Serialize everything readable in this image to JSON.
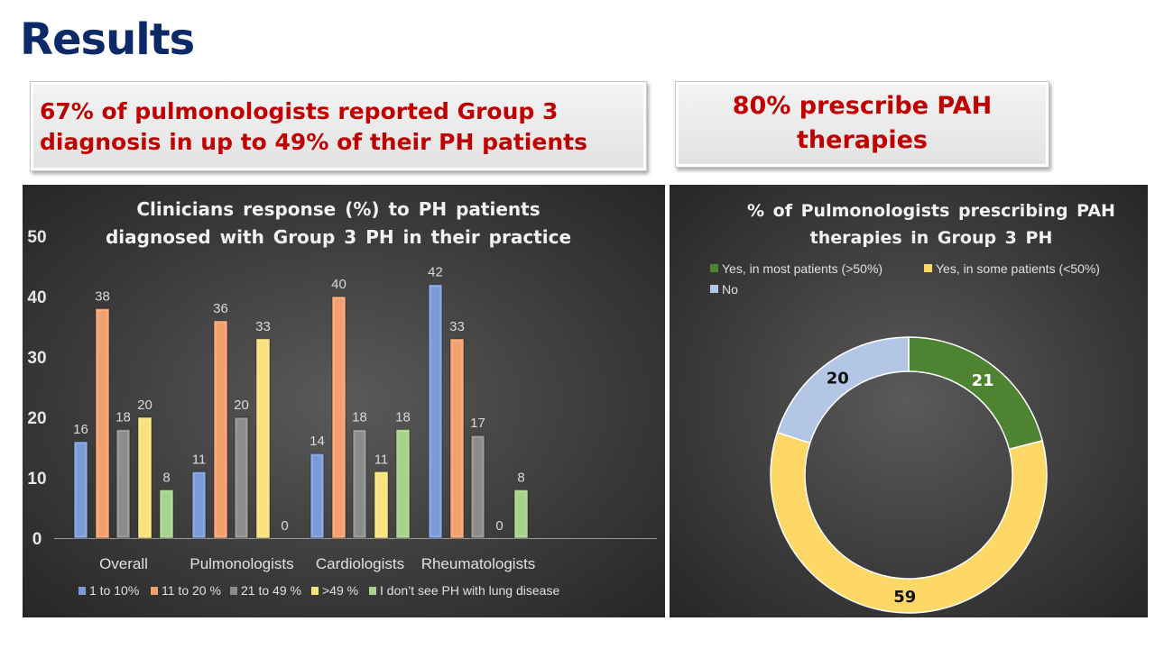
{
  "header": {
    "title": "Results"
  },
  "callouts": [
    {
      "line1": "67% of pulmonologists reported Group 3",
      "line2": "diagnosis in up to 49% of their PH patients"
    },
    {
      "line1": "80% prescribe PAH",
      "line2": "therapies"
    }
  ],
  "colors": {
    "title": "#0d2a68",
    "callout_text": "#c00000"
  },
  "chart_data": [
    {
      "type": "bar",
      "title_line1": "Clinicians  response  (%)  to  PH  patients",
      "title_line2": "diagnosed  with  Group  3  PH  in  their  practice",
      "categories": [
        "Overall",
        "Pulmonologists",
        "Cardiologists",
        "Rheumatologists"
      ],
      "ylim": [
        0,
        50
      ],
      "yticks": [
        "0",
        "10",
        "20",
        "30",
        "40",
        "50"
      ],
      "xlabel": "",
      "ylabel": "",
      "legend_position": "bottom",
      "series": [
        {
          "name": "1 to 10%",
          "color": "#7b9bd8",
          "values": [
            16,
            11,
            14,
            42
          ]
        },
        {
          "name": "11 to 20 %",
          "color": "#f4a06e",
          "values": [
            38,
            36,
            40,
            33
          ]
        },
        {
          "name": "21 to 49 %",
          "color": "#8c8c8c",
          "values": [
            18,
            20,
            18,
            17
          ]
        },
        {
          "name": ">49 %",
          "color": "#f9e27c",
          "values": [
            20,
            33,
            11,
            0
          ]
        },
        {
          "name": "I don’t see PH with lung disease",
          "color": "#a6d38c",
          "values": [
            8,
            0,
            18,
            8
          ]
        }
      ]
    },
    {
      "type": "pie",
      "variant": "donut",
      "title_line1": "% of Pulmonologists prescribing PAH",
      "title_line2": "therapies in Group 3 PH",
      "legend_position": "top",
      "slices": [
        {
          "label": "Yes, in most patients (>50%)",
          "value": 21,
          "color": "#4e8431",
          "text_color": "#ffffff"
        },
        {
          "label": "Yes, in some patients (<50%)",
          "value": 59,
          "color": "#fdd866",
          "text_color": "#111111"
        },
        {
          "label": "No",
          "value": 20,
          "color": "#b3c6e6",
          "text_color": "#111111"
        }
      ]
    }
  ]
}
